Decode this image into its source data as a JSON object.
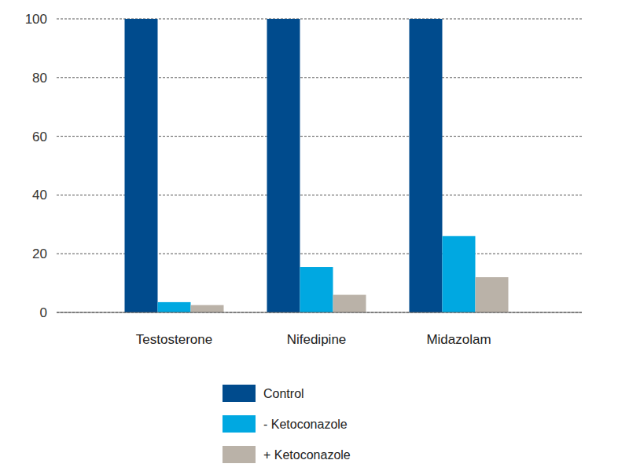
{
  "chart_data": {
    "type": "bar",
    "categories": [
      "Testosterone",
      "Nifedipine",
      "Midazolam"
    ],
    "series": [
      {
        "name": "Control",
        "color": "#004b8d",
        "values": [
          100,
          100,
          100
        ]
      },
      {
        "name": "- Ketoconazole",
        "color": "#00a8e1",
        "values": [
          3.5,
          15.5,
          26
        ]
      },
      {
        "name": "+ Ketoconazole",
        "color": "#bab2a8",
        "values": [
          2.5,
          6,
          12
        ]
      }
    ],
    "ylim": [
      0,
      100
    ],
    "yticks": [
      0,
      20,
      40,
      60,
      80,
      100
    ],
    "grid": true,
    "legend": "bottom"
  }
}
